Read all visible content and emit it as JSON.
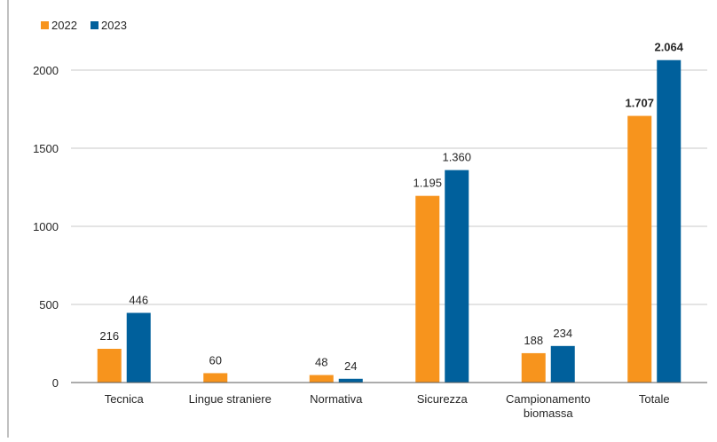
{
  "chart_data": {
    "type": "bar",
    "categories": [
      "Tecnica",
      "Lingue straniere",
      "Normativa",
      "Sicurezza",
      "Campionamento\nbiomassa",
      "Totale"
    ],
    "series": [
      {
        "name": "2022",
        "color": "#F7941D",
        "values": [
          216,
          60,
          48,
          1195,
          188,
          1707
        ],
        "labels": [
          "216",
          "60",
          "48",
          "1.195",
          "188",
          "1.707"
        ]
      },
      {
        "name": "2023",
        "color": "#00609C",
        "values": [
          446,
          0,
          24,
          1360,
          234,
          2064
        ],
        "labels": [
          "446",
          "",
          "24",
          "1.360",
          "234",
          "2.064"
        ]
      }
    ],
    "bold_label_categories": [
      "Totale"
    ],
    "y_ticks": [
      0,
      500,
      1000,
      1500,
      2000
    ],
    "y_tick_labels": [
      "0",
      "500",
      "1000",
      "1500",
      "2000"
    ],
    "ylim": [
      0,
      2250
    ],
    "grid": true,
    "legend_position": "top-left",
    "title": "",
    "xlabel": "",
    "ylabel": ""
  },
  "colors": {
    "grid": "#c8c8c8",
    "axis": "#595959",
    "text": "#262626"
  }
}
